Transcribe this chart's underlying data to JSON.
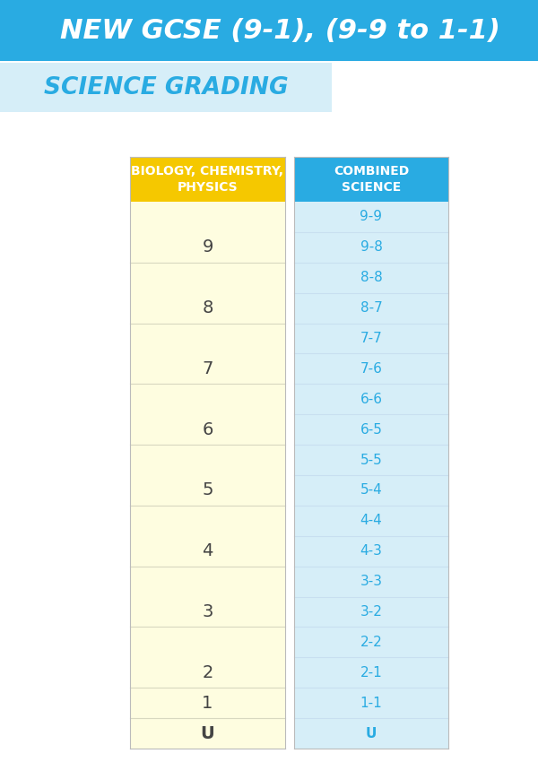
{
  "title1": "NEW GCSE (9-1), (9-9 to 1-1)",
  "title2": "SCIENCE GRADING",
  "col1_header": "BIOLOGY, CHEMISTRY,\nPHYSICS",
  "col2_header": "COMBINED\nSCIENCE",
  "col1_grades": [
    "9",
    "8",
    "7",
    "6",
    "5",
    "4",
    "3",
    "2",
    "1",
    "U"
  ],
  "col2_grades": [
    "9-9",
    "9-8",
    "8-8",
    "8-7",
    "7-7",
    "7-6",
    "6-6",
    "6-5",
    "5-5",
    "5-4",
    "4-4",
    "4-3",
    "3-3",
    "3-2",
    "2-2",
    "2-1",
    "1-1",
    "U"
  ],
  "col1_row_spans": [
    2,
    2,
    2,
    2,
    2,
    2,
    2,
    2,
    1,
    1
  ],
  "header1_bg": "#F5C800",
  "header2_bg": "#29ABE2",
  "col1_bg": "#FEFDE0",
  "col2_bg": "#D6EEF8",
  "title1_bg": "#29ABE2",
  "title2_bg": "#D6EEF8",
  "col1_text_color": "#444444",
  "col2_text_color": "#29ABE2",
  "line_color": "#C8DFF0",
  "col1_line_color": "#D8D8C0",
  "bg_color": "#FFFFFF"
}
